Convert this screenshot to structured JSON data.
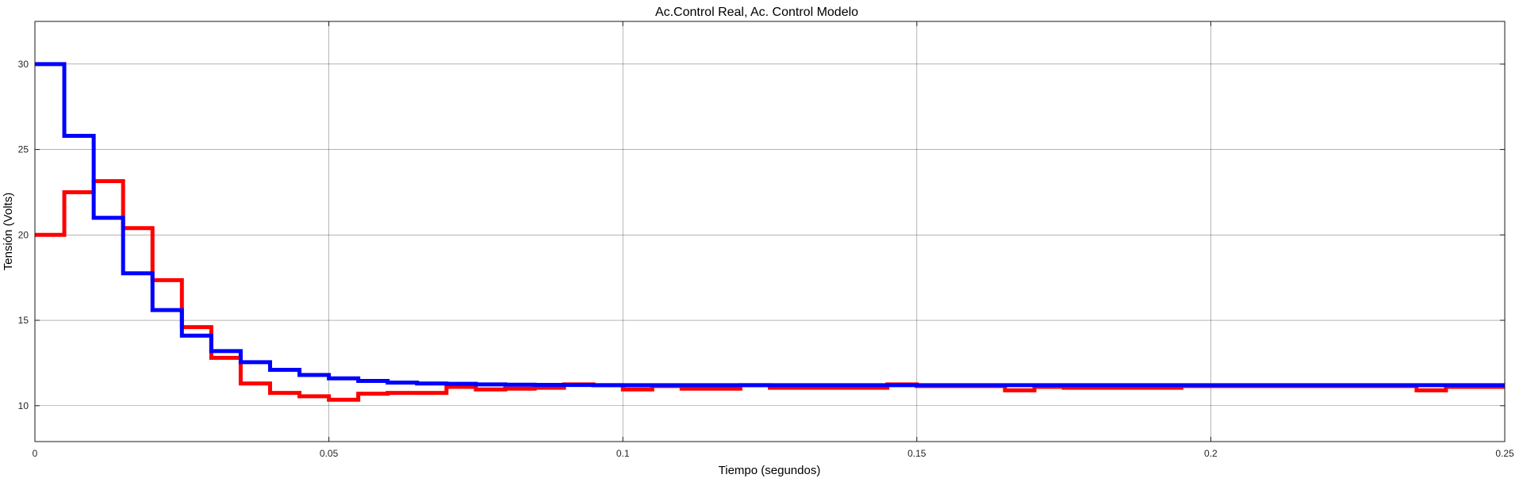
{
  "chart_data": {
    "type": "line",
    "title": "Ac.Control Real, Ac. Control Modelo",
    "xlabel": "Tiempo (segundos)",
    "ylabel": "Tensión (Volts)",
    "xlim": [
      0,
      0.25
    ],
    "ylim": [
      7.9,
      32.5
    ],
    "grid": true,
    "xticks": [
      0,
      0.05,
      0.1,
      0.15,
      0.2,
      0.25
    ],
    "xtick_labels": [
      "0",
      "0.05",
      "0.1",
      "0.15",
      "0.2",
      "0.25"
    ],
    "yticks": [
      10,
      15,
      20,
      25,
      30
    ],
    "ytick_labels": [
      "10",
      "15",
      "20",
      "25",
      "30"
    ],
    "step": "zero-order-hold",
    "series": [
      {
        "color": "#ff0000",
        "x": [
          0,
          0.005,
          0.01,
          0.015,
          0.02,
          0.025,
          0.03,
          0.035,
          0.04,
          0.045,
          0.05,
          0.055,
          0.06,
          0.065,
          0.07,
          0.075,
          0.08,
          0.085,
          0.09,
          0.095,
          0.1,
          0.105,
          0.11,
          0.115,
          0.12,
          0.125,
          0.13,
          0.135,
          0.14,
          0.145,
          0.15,
          0.155,
          0.16,
          0.165,
          0.17,
          0.175,
          0.18,
          0.185,
          0.19,
          0.195,
          0.2,
          0.205,
          0.21,
          0.215,
          0.22,
          0.225,
          0.23,
          0.235,
          0.24,
          0.245,
          0.25
        ],
        "y": [
          20.0,
          22.5,
          23.15,
          20.4,
          17.35,
          14.6,
          12.8,
          11.3,
          10.75,
          10.55,
          10.35,
          10.7,
          10.75,
          10.75,
          11.1,
          10.95,
          11.0,
          11.05,
          11.25,
          11.2,
          10.95,
          11.15,
          11.0,
          11.0,
          11.2,
          11.05,
          11.05,
          11.05,
          11.05,
          11.25,
          11.15,
          11.15,
          11.15,
          10.9,
          11.1,
          11.05,
          11.05,
          11.05,
          11.05,
          11.15,
          11.15,
          11.15,
          11.15,
          11.15,
          11.15,
          11.15,
          11.15,
          10.9,
          11.1,
          11.1,
          11.1
        ]
      },
      {
        "color": "#0000ff",
        "x": [
          0,
          0.005,
          0.01,
          0.015,
          0.02,
          0.025,
          0.03,
          0.035,
          0.04,
          0.045,
          0.05,
          0.055,
          0.06,
          0.065,
          0.07,
          0.075,
          0.08,
          0.085,
          0.09,
          0.095,
          0.1,
          0.25
        ],
        "y": [
          30.0,
          25.8,
          21.0,
          17.75,
          15.6,
          14.1,
          13.2,
          12.55,
          12.1,
          11.8,
          11.6,
          11.45,
          11.35,
          11.3,
          11.28,
          11.25,
          11.23,
          11.22,
          11.21,
          11.2,
          11.2,
          11.2
        ]
      }
    ]
  }
}
